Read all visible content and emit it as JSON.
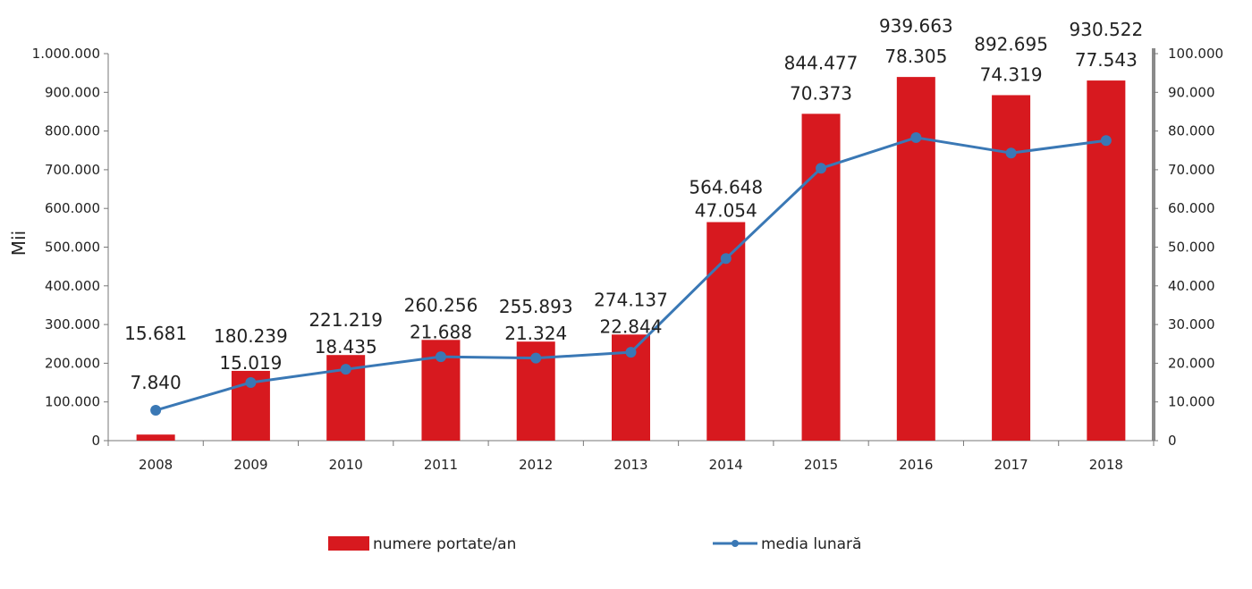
{
  "chart_data": {
    "type": "bar",
    "categories": [
      "2008",
      "2009",
      "2010",
      "2011",
      "2012",
      "2013",
      "2014",
      "2015",
      "2016",
      "2017",
      "2018"
    ],
    "series": [
      {
        "name": "numere portate/an",
        "type": "bar",
        "axis": "left",
        "color": "#d7191f",
        "values": [
          15681,
          180239,
          221219,
          260256,
          255893,
          274137,
          564648,
          844477,
          939663,
          892695,
          930522
        ],
        "labels": [
          "15.681",
          "180.239",
          "221.219",
          "260.256",
          "255.893",
          "274.137",
          "564.648",
          "844.477",
          "939.663",
          "892.695",
          "930.522"
        ]
      },
      {
        "name": "media lunară",
        "type": "line",
        "axis": "right",
        "color": "#3a78b5",
        "values": [
          7840,
          15019,
          18435,
          21688,
          21324,
          22844,
          47054,
          70373,
          78305,
          74319,
          77543
        ],
        "labels": [
          "7.840",
          "15.019",
          "18.435",
          "21.688",
          "21.324",
          "22.844",
          "47.054",
          "70.373",
          "78.305",
          "74.319",
          "77.543"
        ]
      }
    ],
    "title": "",
    "xlabel": "",
    "ylabel": "Mii",
    "ylim": [
      0,
      1000000
    ],
    "y2lim": [
      0,
      100000
    ],
    "yticks": [
      "0",
      "100.000",
      "200.000",
      "300.000",
      "400.000",
      "500.000",
      "600.000",
      "700.000",
      "800.000",
      "900.000",
      "1.000.000"
    ],
    "y2ticks": [
      "0",
      "10.000",
      "20.000",
      "30.000",
      "40.000",
      "50.000",
      "60.000",
      "70.000",
      "80.000",
      "90.000",
      "100.000"
    ],
    "grid": false,
    "legend": "bottom"
  }
}
